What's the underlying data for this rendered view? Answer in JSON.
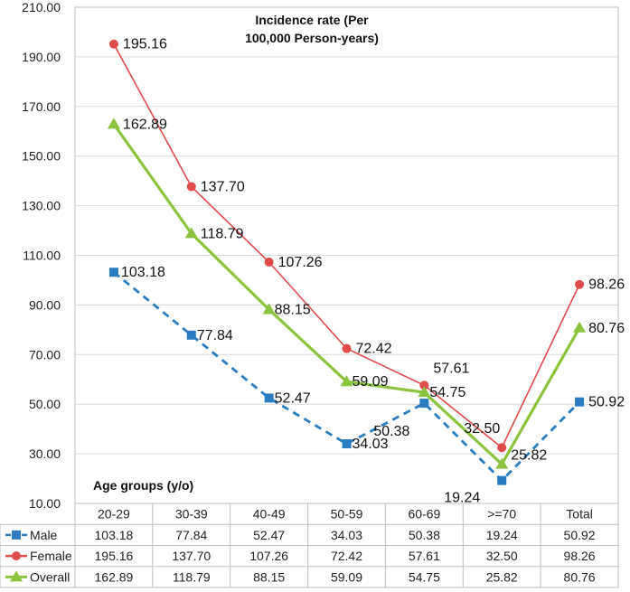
{
  "chart_data": {
    "type": "line",
    "title_lines": [
      "Incidence rate (Per",
      "100,000 Person-years)"
    ],
    "xlabel": "Age groups (y/o)",
    "ylabel": "",
    "ylim": [
      10,
      210
    ],
    "yticks": [
      "10.00",
      "30.00",
      "50.00",
      "70.00",
      "90.00",
      "110.00",
      "130.00",
      "150.00",
      "170.00",
      "190.00",
      "210.00"
    ],
    "categories": [
      "20-29",
      "30-39",
      "40-49",
      "50-59",
      "60-69",
      ">=70",
      "Total"
    ],
    "series": [
      {
        "name": "Male",
        "color": "#2b7cc0",
        "marker": "square",
        "dash": true,
        "values": [
          103.18,
          77.84,
          52.47,
          34.03,
          50.38,
          19.24,
          50.92
        ],
        "labels": [
          "103.18",
          "77.84",
          "52.47",
          "34.03",
          "50.38",
          "19.24",
          "50.92"
        ]
      },
      {
        "name": "Female",
        "color": "#e04b4b",
        "marker": "circle",
        "dash": false,
        "values": [
          195.16,
          137.7,
          107.26,
          72.42,
          57.61,
          32.5,
          98.26
        ],
        "labels": [
          "195.16",
          "137.70",
          "107.26",
          "72.42",
          "57.61",
          "32.50",
          "98.26"
        ]
      },
      {
        "name": "Overall",
        "color": "#8dc43f",
        "marker": "triangle",
        "dash": false,
        "values": [
          162.89,
          118.79,
          88.15,
          59.09,
          54.75,
          25.82,
          80.76
        ],
        "labels": [
          "162.89",
          "118.79",
          "88.15",
          "59.09",
          "54.75",
          "25.82",
          "80.76"
        ]
      }
    ],
    "grid": true,
    "legend": "data-table-below"
  }
}
